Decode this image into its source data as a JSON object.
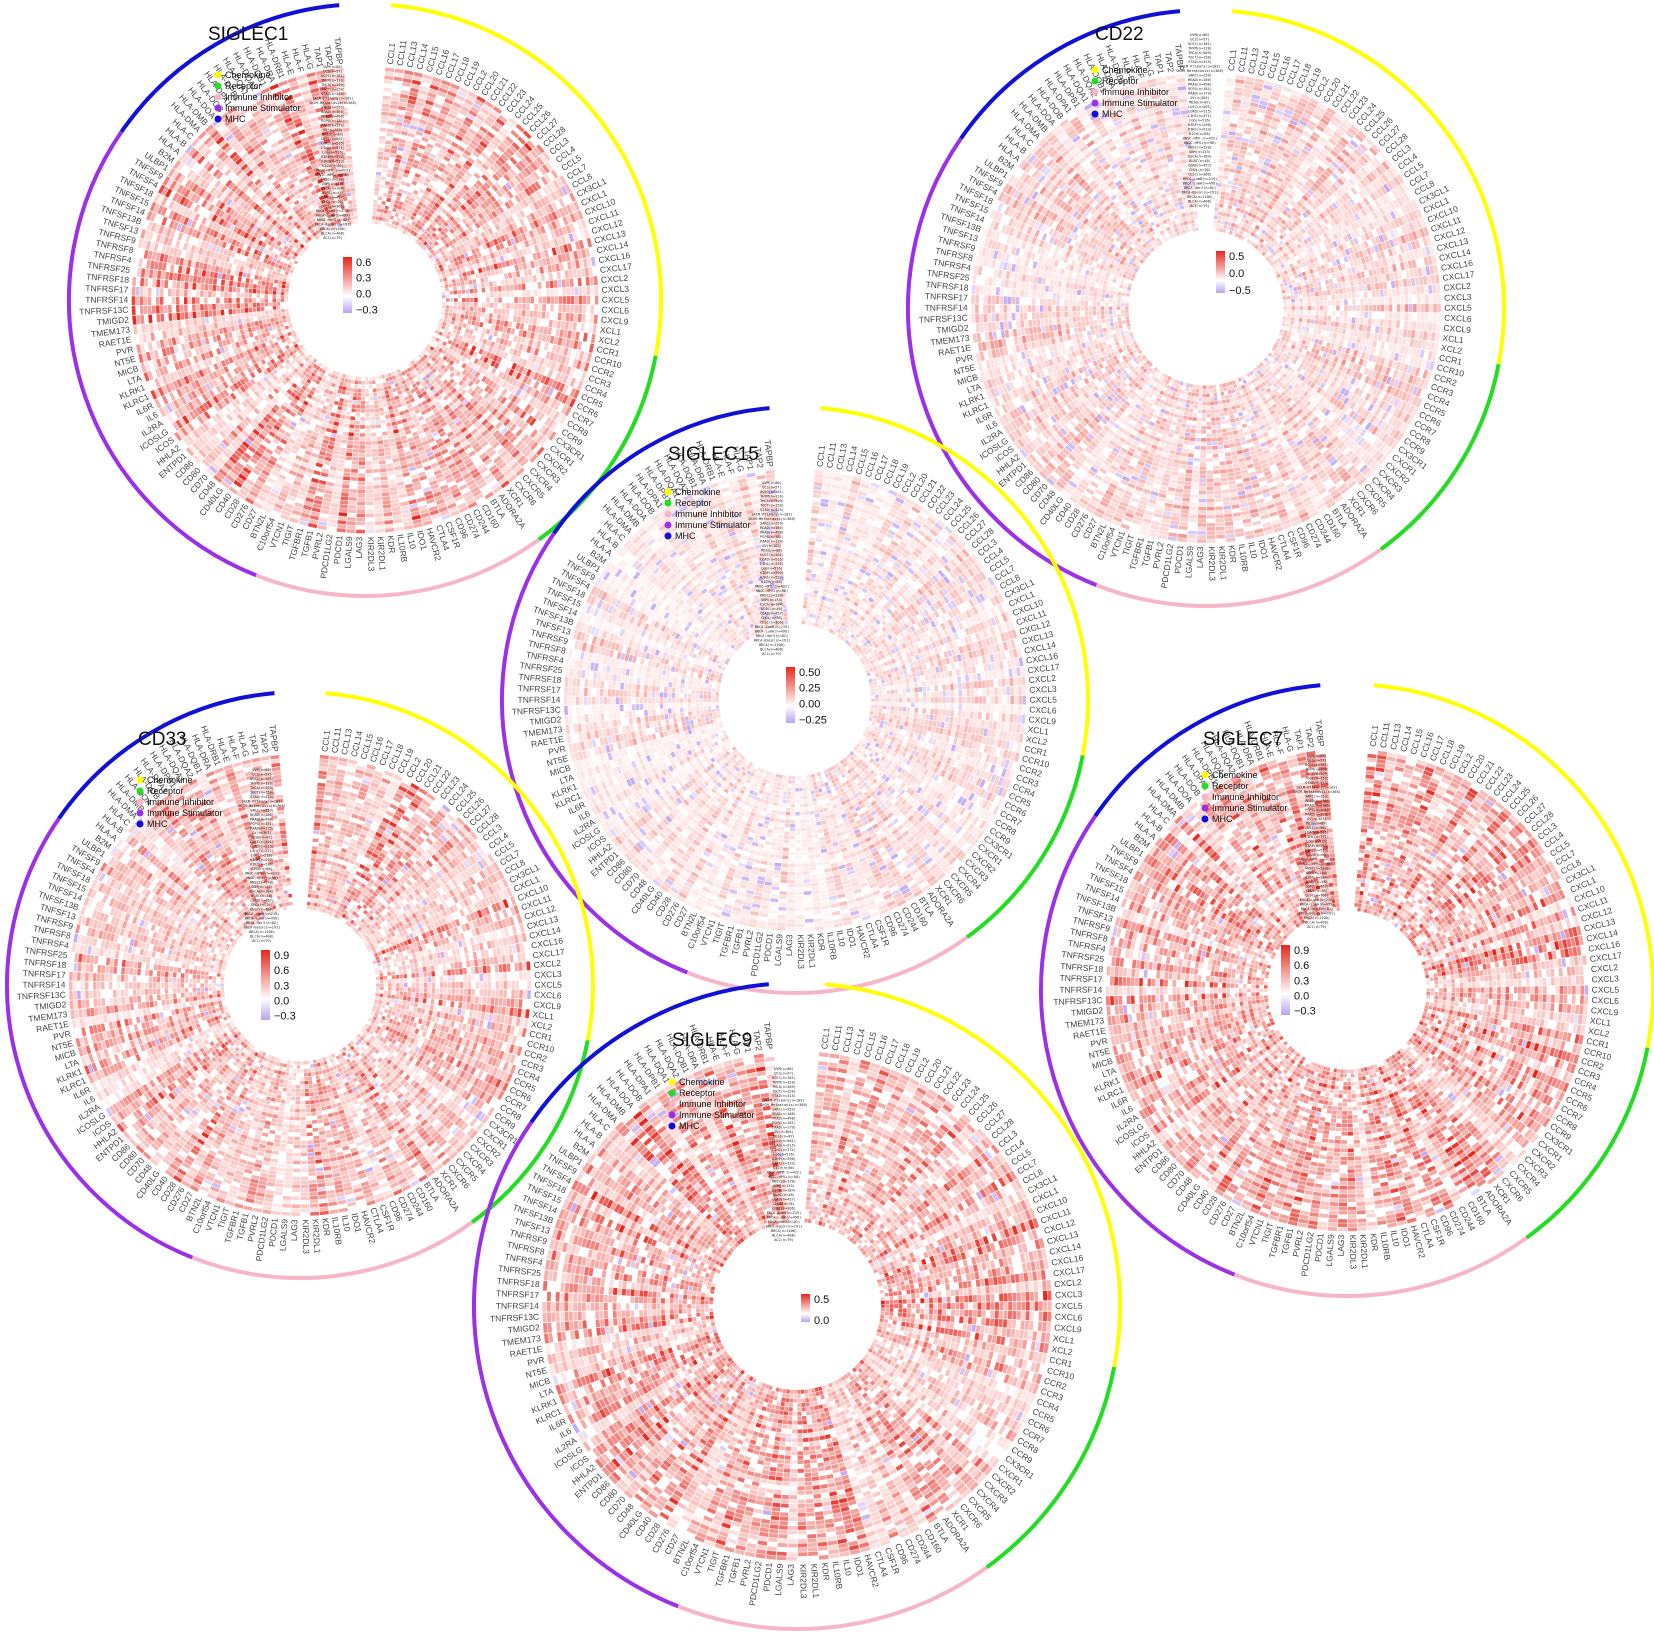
{
  "figure": {
    "legend_items": [
      {
        "label": "Chemokine",
        "color": "#ffff00"
      },
      {
        "label": "Receptor",
        "color": "#22dd22"
      },
      {
        "label": "Immune Inhibitor",
        "color": "#f6b6c8"
      },
      {
        "label": "Immune Stimulator",
        "color": "#9b30e8"
      },
      {
        "label": "MHC",
        "color": "#1010d8"
      }
    ],
    "color_scale": {
      "high": "#e8261c",
      "mid": "#ffffff",
      "low": "#b9a3f0"
    }
  },
  "chart_data": [
    {
      "type": "heatmap",
      "layout": "circular",
      "title": "SIGLEC1",
      "colorbar_ticks": [
        "0.6",
        "0.3",
        "0.0",
        "−0.3"
      ],
      "intensity": 0.75,
      "negatives": 0.02
    },
    {
      "type": "heatmap",
      "layout": "circular",
      "title": "CD22",
      "colorbar_ticks": [
        "0.5",
        "0.0",
        "−0.5"
      ],
      "intensity": 0.4,
      "negatives": 0.07
    },
    {
      "type": "heatmap",
      "layout": "circular",
      "title": "SIGLEC15",
      "colorbar_ticks": [
        "0.50",
        "0.25",
        "0.00",
        "−0.25"
      ],
      "intensity": 0.3,
      "negatives": 0.09
    },
    {
      "type": "heatmap",
      "layout": "circular",
      "title": "CD33",
      "colorbar_ticks": [
        "0.9",
        "0.6",
        "0.3",
        "0.0",
        "−0.3"
      ],
      "intensity": 0.7,
      "negatives": 0.02
    },
    {
      "type": "heatmap",
      "layout": "circular",
      "title": "SIGLEC7",
      "colorbar_ticks": [
        "0.9",
        "0.6",
        "0.3",
        "0.0",
        "−0.3"
      ],
      "intensity": 0.75,
      "negatives": 0.02
    },
    {
      "type": "heatmap",
      "layout": "circular",
      "title": "SIGLEC9",
      "colorbar_ticks": [
        "0.5",
        "0.0"
      ],
      "intensity": 0.75,
      "negatives": 0.02
    }
  ],
  "genes": {
    "Chemokine": [
      "CCL1",
      "CCL11",
      "CCL13",
      "CCL14",
      "CCL15",
      "CCL16",
      "CCL17",
      "CCL18",
      "CCL19",
      "CCL2",
      "CCL20",
      "CCL21",
      "CCL22",
      "CCL23",
      "CCL24",
      "CCL25",
      "CCL26",
      "CCL27",
      "CCL28",
      "CCL3",
      "CCL4",
      "CCL5",
      "CCL7",
      "CCL8",
      "CX3CL1",
      "CXCL1",
      "CXCL10",
      "CXCL11",
      "CXCL12",
      "CXCL13",
      "CXCL14",
      "CXCL16",
      "CXCL17",
      "CXCL2",
      "CXCL3",
      "CXCL5",
      "CXCL6",
      "CXCL9",
      "XCL1",
      "XCL2"
    ],
    "Receptor": [
      "CCR1",
      "CCR10",
      "CCR2",
      "CCR3",
      "CCR4",
      "CCR5",
      "CCR6",
      "CCR7",
      "CCR8",
      "CCR9",
      "CX3CR1",
      "CXCR1",
      "CXCR2",
      "CXCR3",
      "CXCR4",
      "CXCR5",
      "CXCR6",
      "XCR1"
    ],
    "Immune Inhibitor": [
      "ADORA2A",
      "BTLA",
      "CD160",
      "CD244",
      "CD274",
      "CD96",
      "CSF1R",
      "CTLA4",
      "HAVCR2",
      "IDO1",
      "IL10",
      "IL10RB",
      "KDR",
      "KIR2DL1",
      "KIR2DL3",
      "LAG3",
      "LGALS9",
      "PDCD1",
      "PDCD1LG2",
      "PVRL2",
      "TGFB1",
      "TGFBR1",
      "TIGIT",
      "VTCN1"
    ],
    "Immune Stimulator": [
      "C10orf54",
      "BTN2L",
      "CD27",
      "CD276",
      "CD28",
      "CD40",
      "CD40LG",
      "CD48",
      "CD70",
      "CD80",
      "CD86",
      "ENTPD1",
      "HHLA2",
      "ICOS",
      "ICOSLG",
      "IL2RA",
      "IL6",
      "IL6R",
      "KLRC1",
      "KLRK1",
      "LTA",
      "MICB",
      "NT5E",
      "PVR",
      "RAET1E",
      "TMEM173",
      "TMIGD2",
      "TNFRSF13C",
      "TNFRSF14",
      "TNFRSF17",
      "TNFRSF18",
      "TNFRSF25",
      "TNFRSF4",
      "TNFRSF8",
      "TNFRSF9",
      "TNFSF13",
      "TNFSF13B",
      "TNFSF14",
      "TNFSF15",
      "TNFSF18",
      "TNFSF4",
      "TNFSF9",
      "ULBP1"
    ],
    "MHC": [
      "B2M",
      "HLA-A",
      "HLA-B",
      "HLA-C",
      "HLA-DMA",
      "HLA-DMB",
      "HLA-DOA",
      "HLA-DOB",
      "HLA-DPA1",
      "HLA-DPB1",
      "HLA-DQA1",
      "HLA-DQA2",
      "HLA-DQB1",
      "HLA-DRA",
      "HLA-DRB1",
      "HLA-E",
      "HLA-F",
      "HLA-G",
      "TAP1",
      "TAP2",
      "TAPBP"
    ]
  },
  "cancer_types": [
    "UVM(n=80)",
    "UCS(n=57)",
    "UCEC(n=181)",
    "THYM(n=120)",
    "THCA(n=509)",
    "TGCT(n=150)",
    "STAD(n=415)",
    "SKCM-Primary(n=103)",
    "SKCM-Metastasis(n=368)",
    "SARC(n=259)",
    "READ(n=166)",
    "PRAD(n=498)",
    "PCPG(n=181)",
    "PAAD(n=179)",
    "OV(n=303)",
    "MESO(n=87)",
    "LUSC(n=501)",
    "LUAD(n=515)",
    "LIHC(n=371)",
    "LGG(n=516)",
    "KIRP(n=290)",
    "KIRC(n=533)",
    "KICH(n=66)",
    "HNSC-HPV-(n=422)",
    "HNSC-HPV+(n=98)",
    "HNSC(n=520)",
    "GBM(n=153)",
    "ESCA(n=184)",
    "DLBC(n=48)",
    "COAD(n=457)",
    "CHOL(n=36)",
    "CESC(n=306)",
    "BRCA-LumB(n=219)",
    "BRCA-LumA(n=499)",
    "BRCA-Her2(n=82)",
    "BRCA-Basal(n=191)",
    "BRCA(n=1100)",
    "BLCA(n=408)",
    "ACC(n=79)"
  ]
}
